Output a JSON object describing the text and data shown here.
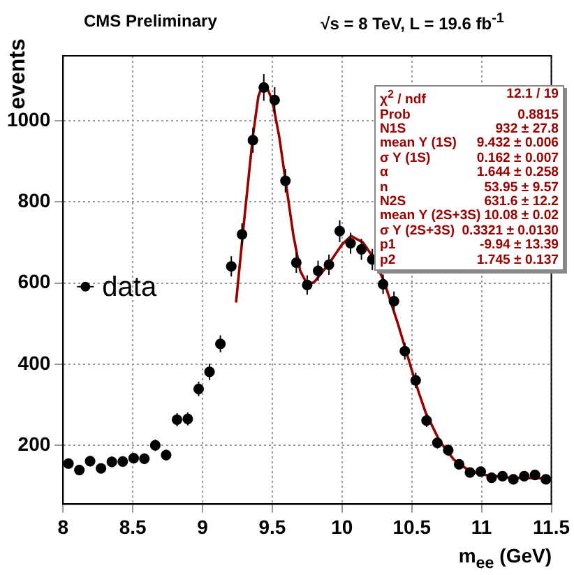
{
  "chart_data": {
    "type": "scatter",
    "title": "CMS Preliminary",
    "subtitle": "√s = 8 TeV, L = 19.6 fb$^{-1}$",
    "xlabel": "m$_{ee}$ (GeV)",
    "ylabel": "events",
    "xlim": [
      8,
      11.5
    ],
    "xticks": [
      8,
      8.5,
      9,
      9.5,
      10,
      10.5,
      11,
      11.5
    ],
    "ylim": [
      55,
      1160
    ],
    "yticks": [
      200,
      400,
      600,
      800,
      1000
    ],
    "grid": true,
    "legend": "left",
    "series": [
      {
        "name": "data",
        "color": "#000000",
        "marker": "circle",
        "x": [
          8.039,
          8.117,
          8.194,
          8.272,
          8.35,
          8.428,
          8.506,
          8.583,
          8.661,
          8.739,
          8.817,
          8.894,
          8.972,
          9.05,
          9.128,
          9.206,
          9.283,
          9.361,
          9.439,
          9.517,
          9.594,
          9.672,
          9.75,
          9.828,
          9.906,
          9.983,
          10.061,
          10.139,
          10.217,
          10.294,
          10.372,
          10.45,
          10.528,
          10.606,
          10.683,
          10.761,
          10.839,
          10.917,
          10.994,
          11.072,
          11.15,
          11.228,
          11.306,
          11.383,
          11.461
        ],
        "values": [
          155,
          139,
          161,
          143,
          159,
          160,
          168,
          167,
          200,
          176,
          263,
          265,
          339,
          381,
          450,
          641,
          720,
          952,
          1082,
          1051,
          852,
          650,
          595,
          630,
          645,
          728,
          698,
          683,
          658,
          597,
          555,
          432,
          360,
          261,
          206,
          188,
          153,
          133,
          135,
          120,
          124,
          116,
          124,
          127,
          116
        ],
        "errors": [
          12,
          12,
          13,
          12,
          13,
          13,
          13,
          13,
          14,
          13,
          16,
          16,
          18,
          20,
          21,
          25,
          27,
          31,
          33,
          32,
          29,
          25,
          24,
          25,
          25,
          27,
          26,
          26,
          26,
          24,
          24,
          21,
          19,
          16,
          14,
          14,
          12,
          12,
          12,
          11,
          11,
          11,
          11,
          11,
          11
        ]
      },
      {
        "type": "line",
        "color": "#990000",
        "marker": "none",
        "line_style": "solid",
        "x": [
          9.24,
          9.3,
          9.36,
          9.4,
          9.43,
          9.47,
          9.5,
          9.55,
          9.6,
          9.65,
          9.7,
          9.75,
          9.8,
          9.9,
          10.0,
          10.065,
          10.15,
          10.22,
          10.3,
          10.4,
          10.5,
          10.55,
          10.6,
          10.7,
          10.8,
          10.9,
          11.0,
          11.2,
          11.5
        ],
        "values": [
          552,
          760,
          960,
          1060,
          1088,
          1075,
          1050,
          960,
          840,
          720,
          630,
          597,
          602,
          645,
          695,
          716,
          700,
          665,
          605,
          500,
          385,
          330,
          280,
          210,
          165,
          140,
          128,
          120,
          118
        ]
      }
    ],
    "annotations": [
      "χ$^{2}$ / ndf",
      "12.1 / 19",
      "Prob",
      "0.8815",
      "N1S",
      "932 ± 27.8",
      "mean Υ (1S)",
      "9.432 ± 0.006",
      "σ Υ (1S)",
      "0.162 ± 0.007",
      "α",
      "1.644 ± 0.258",
      "n",
      "53.95 ± 9.57",
      "N2S",
      "631.6 ± 12.2",
      "mean Υ (2S+3S)",
      "10.08 ± 0.02",
      "σ Υ (2S+3S)",
      "0.3321 ± 0.0130",
      "p1",
      "-9.94 ± 13.39",
      "p2",
      "1.745 ± 0.137"
    ]
  }
}
